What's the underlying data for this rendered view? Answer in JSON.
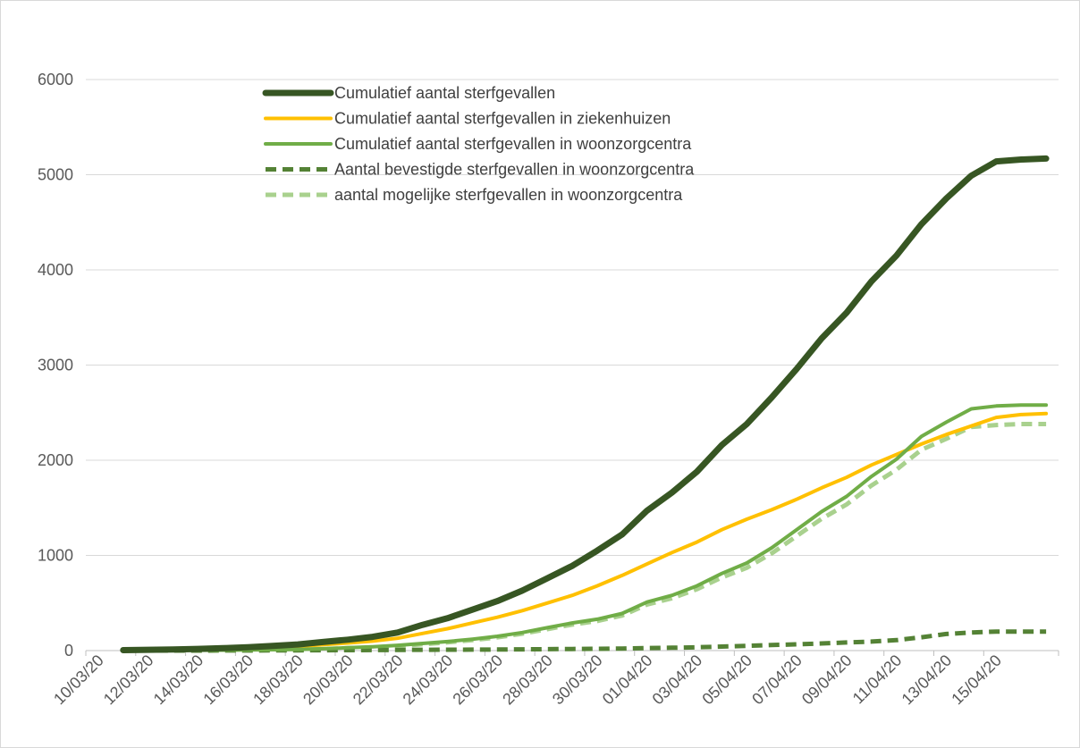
{
  "chart_data": {
    "type": "line",
    "title": "",
    "xlabel": "",
    "ylabel": "",
    "ylim": [
      0,
      6000
    ],
    "yticks": [
      0,
      1000,
      2000,
      3000,
      4000,
      5000,
      6000
    ],
    "xlim": [
      "10/03/20",
      "18/04/20"
    ],
    "xtick_labels": [
      "10/03/20",
      "12/03/20",
      "14/03/20",
      "16/03/20",
      "18/03/20",
      "20/03/20",
      "22/03/20",
      "24/03/20",
      "26/03/20",
      "28/03/20",
      "30/03/20",
      "01/04/20",
      "03/04/20",
      "05/04/20",
      "07/04/20",
      "09/04/20",
      "11/04/20",
      "13/04/20",
      "15/04/20"
    ],
    "grid": true,
    "legend_position": "top-center",
    "x": [
      "11/03/20",
      "12/03/20",
      "13/03/20",
      "14/03/20",
      "15/03/20",
      "16/03/20",
      "17/03/20",
      "18/03/20",
      "19/03/20",
      "20/03/20",
      "21/03/20",
      "22/03/20",
      "23/03/20",
      "24/03/20",
      "25/03/20",
      "26/03/20",
      "27/03/20",
      "28/03/20",
      "29/03/20",
      "30/03/20",
      "31/03/20",
      "01/04/20",
      "02/04/20",
      "03/04/20",
      "04/04/20",
      "05/04/20",
      "06/04/20",
      "07/04/20",
      "08/04/20",
      "09/04/20",
      "10/04/20",
      "11/04/20",
      "12/04/20",
      "13/04/20",
      "14/04/20",
      "15/04/20",
      "16/04/20",
      "17/04/20"
    ],
    "series": [
      {
        "name": "Cumulatief aantal sterfgevallen",
        "color": "#375623",
        "style": "solid-thick",
        "values": [
          5,
          8,
          12,
          18,
          25,
          35,
          50,
          65,
          90,
          115,
          145,
          190,
          270,
          340,
          430,
          520,
          630,
          760,
          890,
          1050,
          1220,
          1470,
          1660,
          1880,
          2160,
          2380,
          2660,
          2960,
          3280,
          3550,
          3880,
          4150,
          4480,
          4750,
          4990,
          5140,
          5160,
          5170
        ]
      },
      {
        "name": "Cumulatief aantal sterfgevallen in ziekenhuizen",
        "color": "#ffc000",
        "style": "solid",
        "values": [
          3,
          5,
          8,
          12,
          17,
          24,
          33,
          45,
          62,
          80,
          100,
          130,
          180,
          230,
          290,
          350,
          420,
          500,
          580,
          680,
          790,
          910,
          1030,
          1140,
          1270,
          1380,
          1480,
          1590,
          1710,
          1820,
          1950,
          2060,
          2170,
          2270,
          2360,
          2450,
          2480,
          2490
        ]
      },
      {
        "name": "Cumulatief aantal sterfgevallen in woonzorgcentra",
        "color": "#70ad47",
        "style": "solid",
        "values": [
          1,
          2,
          3,
          4,
          5,
          7,
          9,
          12,
          20,
          30,
          40,
          55,
          75,
          95,
          120,
          150,
          190,
          240,
          290,
          330,
          390,
          510,
          580,
          680,
          810,
          920,
          1080,
          1270,
          1460,
          1620,
          1830,
          2010,
          2250,
          2400,
          2540,
          2570,
          2580,
          2580
        ]
      },
      {
        "name": "Aantal bevestigde sterfgevallen in woonzorgcentra",
        "color": "#548235",
        "style": "dashed",
        "values": [
          0,
          0,
          0,
          0,
          1,
          1,
          2,
          3,
          4,
          5,
          6,
          7,
          8,
          9,
          10,
          11,
          13,
          15,
          17,
          19,
          22,
          26,
          30,
          35,
          42,
          50,
          58,
          66,
          75,
          85,
          95,
          110,
          140,
          175,
          190,
          200,
          200,
          200
        ]
      },
      {
        "name": "aantal mogelijke sterfgevallen in woonzorgcentra",
        "color": "#a9d18e",
        "style": "dashed",
        "values": [
          1,
          2,
          3,
          4,
          5,
          6,
          8,
          10,
          16,
          25,
          34,
          48,
          67,
          86,
          110,
          139,
          177,
          225,
          273,
          311,
          368,
          484,
          550,
          645,
          768,
          870,
          1022,
          1204,
          1385,
          1535,
          1735,
          1900,
          2110,
          2225,
          2350,
          2370,
          2380,
          2380
        ]
      }
    ]
  }
}
